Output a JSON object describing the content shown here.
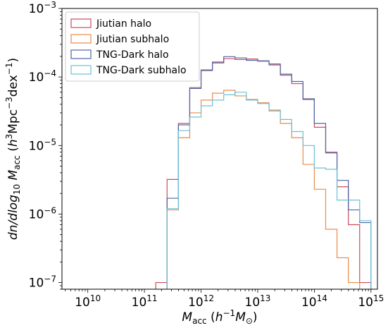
{
  "chart_data": {
    "type": "histogram-step",
    "xlabel": {
      "main": "M",
      "sub": "acc",
      "paren_pre": " (",
      "h": "h",
      "h_sup": "−1",
      "M": "M",
      "M_sub": "⊙",
      "paren_post": ")"
    },
    "ylabel": {
      "pre": "dn/dlog",
      "pre_sub": "10",
      "M": "M",
      "M_sub": "acc",
      "paren_pre": " (",
      "h": "h",
      "h_sup": "3",
      "mpc": "Mpc",
      "mpc_sup": "−3",
      "dex": "dex",
      "dex_sup": "−1",
      "paren_post": ")"
    },
    "x_scale": "log",
    "y_scale": "log",
    "xlim": [
      3500000000.0,
      1300000000000000.0
    ],
    "ylim": [
      8e-08,
      0.001
    ],
    "x_ticks": [
      {
        "value": 10000000000.0,
        "base": "10",
        "exp": "10"
      },
      {
        "value": 100000000000.0,
        "base": "10",
        "exp": "11"
      },
      {
        "value": 1000000000000.0,
        "base": "10",
        "exp": "12"
      },
      {
        "value": 10000000000000.0,
        "base": "10",
        "exp": "13"
      },
      {
        "value": 100000000000000.0,
        "base": "10",
        "exp": "14"
      },
      {
        "value": 1000000000000000.0,
        "base": "10",
        "exp": "15"
      }
    ],
    "y_ticks": [
      {
        "value": 1e-07,
        "base": "10",
        "exp": "−7"
      },
      {
        "value": 1e-06,
        "base": "10",
        "exp": "−6"
      },
      {
        "value": 1e-05,
        "base": "10",
        "exp": "−5"
      },
      {
        "value": 0.0001,
        "base": "10",
        "exp": "−4"
      },
      {
        "value": 0.001,
        "base": "10",
        "exp": "−3"
      }
    ],
    "bin_edges_log10": [
      11.2,
      11.4,
      11.6,
      11.8,
      12.0,
      12.2,
      12.4,
      12.6,
      12.8,
      13.0,
      13.2,
      13.4,
      13.6,
      13.8,
      14.0,
      14.2,
      14.4,
      14.6,
      14.8,
      15.0
    ],
    "legend": {
      "position": "upper left"
    },
    "series": [
      {
        "name": "Jiutian halo",
        "color": "#d04a58",
        "values": [
          1e-07,
          3.2e-06,
          2.1e-05,
          7e-05,
          0.000127,
          0.00016,
          0.000185,
          0.00018,
          0.000183,
          0.00017,
          0.000155,
          0.000106,
          8e-05,
          4.7e-05,
          1.85e-05,
          8e-06,
          2.5e-06,
          7e-07,
          1e-07
        ]
      },
      {
        "name": "Jiutian subhalo",
        "color": "#e98a4a",
        "values": [
          null,
          1.15e-06,
          1.3e-05,
          3e-05,
          4.6e-05,
          5.8e-05,
          6.4e-05,
          5.3e-05,
          4.7e-05,
          4.2e-05,
          3.2e-05,
          2.1e-05,
          1.3e-05,
          5.3e-06,
          2.3e-06,
          6e-07,
          2.3e-07,
          1e-07,
          null
        ]
      },
      {
        "name": "TNG-Dark halo",
        "color": "#4a66a8",
        "values": [
          null,
          1.7e-06,
          2e-05,
          6.8e-05,
          0.000124,
          0.000165,
          0.000198,
          0.00019,
          0.000175,
          0.000172,
          0.00015,
          0.00011,
          8.6e-05,
          4.8e-05,
          2.1e-05,
          7.8e-06,
          3.1e-06,
          1.15e-06,
          7.5e-07
        ]
      },
      {
        "name": "TNG-Dark subhalo",
        "color": "#6cc0d4",
        "values": [
          null,
          1.2e-06,
          1.65e-05,
          2.6e-05,
          3.8e-05,
          4.6e-05,
          5.5e-05,
          6e-05,
          4.6e-05,
          4.1e-05,
          3.3e-05,
          2.4e-05,
          1.6e-05,
          1e-05,
          4.7e-06,
          4.5e-06,
          1.6e-06,
          1.6e-06,
          8e-07
        ]
      }
    ]
  }
}
